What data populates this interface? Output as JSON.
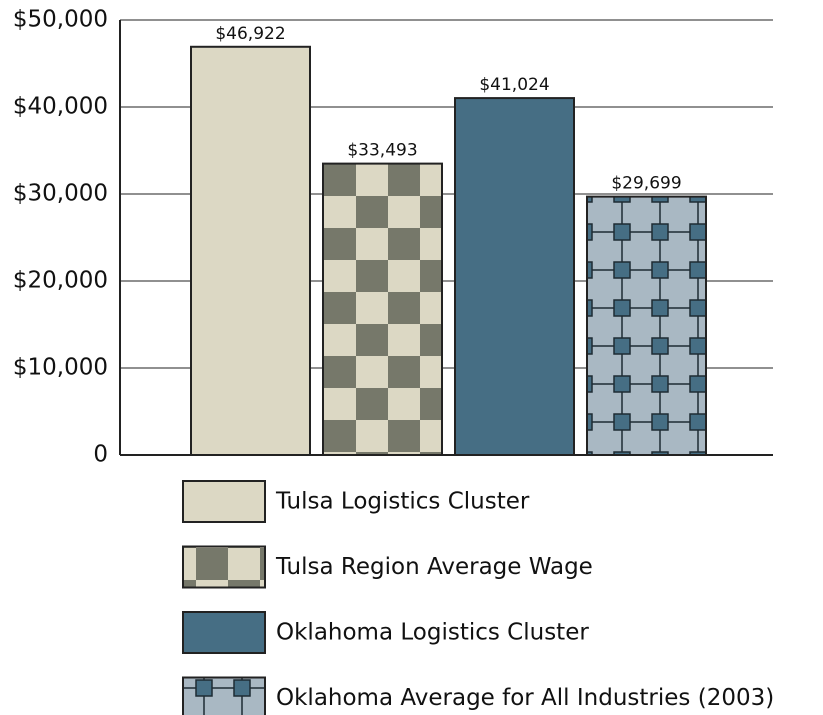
{
  "chart_data": {
    "type": "bar",
    "series": [
      {
        "name": "Tulsa Logistics Cluster",
        "color": "#dcd8c4",
        "pattern": "solid",
        "values": [
          46922
        ],
        "value_labels": [
          "$46,922"
        ]
      },
      {
        "name": "Tulsa Region Average Wage",
        "color": [
          "#dcd8c4",
          "#76786a"
        ],
        "pattern": "checker",
        "values": [
          33493
        ],
        "value_labels": [
          "$33,493"
        ]
      },
      {
        "name": "Oklahoma Logistics Cluster",
        "color": "#466e84",
        "pattern": "solid",
        "values": [
          41024
        ],
        "value_labels": [
          "$41,024"
        ]
      },
      {
        "name": "Oklahoma Average for All Industries (2003)",
        "color": [
          "#a9b8c3",
          "#466e84"
        ],
        "pattern": "octagon",
        "values": [
          29699
        ],
        "value_labels": [
          "$29,699"
        ]
      }
    ],
    "ylim": [
      0,
      50000
    ],
    "yticks": [
      0,
      {
        "value": 10000,
        "label": "$10,000"
      },
      {
        "value": 20000,
        "label": "$20,000"
      },
      {
        "value": 30000,
        "label": "$30,000"
      },
      {
        "value": 40000,
        "label": "$40,000"
      },
      {
        "value": 50000,
        "label": "$50,000"
      }
    ],
    "grid": true
  }
}
